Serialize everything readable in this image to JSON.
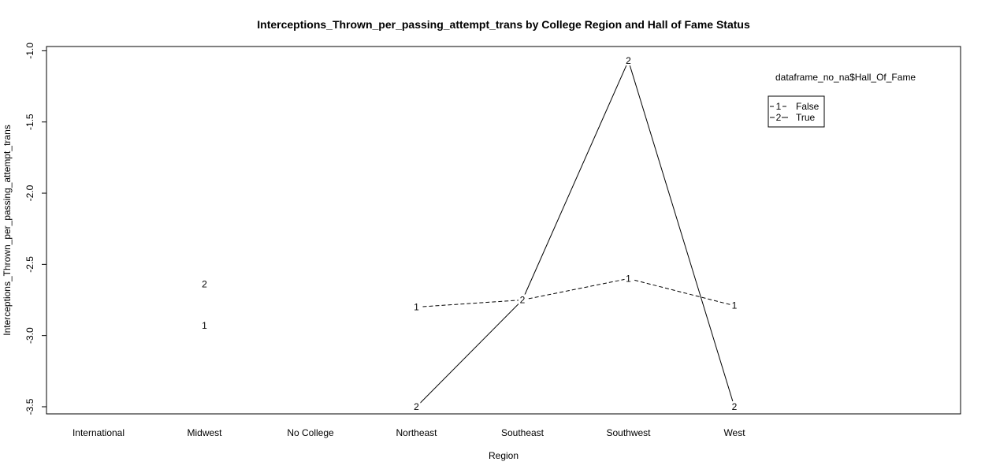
{
  "chart_data": {
    "type": "line",
    "title": "Interceptions_Thrown_per_passing_attempt_trans by College Region and Hall of Fame Status",
    "xlabel": "Region",
    "ylabel": "Interceptions_Thrown_per_passing_attempt_trans",
    "categories": [
      "International",
      "Midwest",
      "No College",
      "Northeast",
      "Southeast",
      "Southwest",
      "West"
    ],
    "ylim": [
      -3.55,
      -0.97
    ],
    "yticks": [
      -1.0,
      -1.5,
      -2.0,
      -2.5,
      -3.0,
      -3.5
    ],
    "ytick_labels": [
      "-1.0",
      "-1.5",
      "-2.0",
      "-2.5",
      "-3.0",
      "-3.5"
    ],
    "grid": false,
    "legend": {
      "title": "dataframe_no_na$Hall_Of_Fame",
      "position": "top-right",
      "entries": [
        {
          "symbol": "1",
          "label": "False",
          "dash": "dashed"
        },
        {
          "symbol": "2",
          "label": "True",
          "dash": "solid"
        }
      ]
    },
    "series": [
      {
        "name": "False",
        "symbol": "1",
        "dash": "dashed",
        "values": [
          null,
          -2.93,
          null,
          -2.8,
          -2.75,
          -2.6,
          -2.79
        ]
      },
      {
        "name": "True",
        "symbol": "2",
        "dash": "solid",
        "values": [
          null,
          -2.64,
          null,
          -3.5,
          -2.75,
          -1.07,
          -3.5
        ]
      }
    ]
  }
}
